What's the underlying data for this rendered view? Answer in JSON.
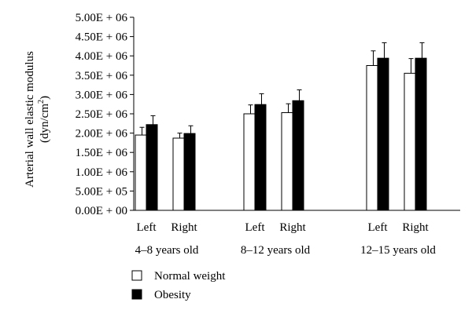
{
  "chart_data": {
    "type": "bar",
    "ylabel": "Arterial wall elastic modulus",
    "ylabel_unit_pre": "(dyn/cm",
    "ylabel_unit_sup": "2",
    "ylabel_unit_post": ")",
    "ylim": [
      0,
      5000000
    ],
    "ytick_labels": [
      "0.00E + 00",
      "5.00E + 05",
      "1.00E + 06",
      "1.50E + 06",
      "2.00E + 06",
      "2.50E + 06",
      "3.00E + 06",
      "3.50E + 06",
      "4.00E + 06",
      "4.50E + 06",
      "5.00E + 06"
    ],
    "groups": [
      {
        "label": "4–8 years old",
        "sides": [
          "Left",
          "Right"
        ]
      },
      {
        "label": "8–12 years old",
        "sides": [
          "Left",
          "Right"
        ]
      },
      {
        "label": "12–15 years old",
        "sides": [
          "Left",
          "Right"
        ]
      }
    ],
    "series": [
      {
        "name": "Normal weight",
        "color": "#ffffff",
        "values": [
          1950000,
          1870000,
          2500000,
          2530000,
          3750000,
          3550000
        ],
        "errors": [
          200000,
          130000,
          230000,
          230000,
          380000,
          380000
        ]
      },
      {
        "name": "Obesity",
        "color": "#000000",
        "values": [
          2220000,
          1990000,
          2740000,
          2840000,
          3940000,
          3940000
        ],
        "errors": [
          230000,
          200000,
          280000,
          280000,
          400000,
          400000
        ]
      }
    ],
    "legend_position": "bottom-left",
    "grid": false
  }
}
